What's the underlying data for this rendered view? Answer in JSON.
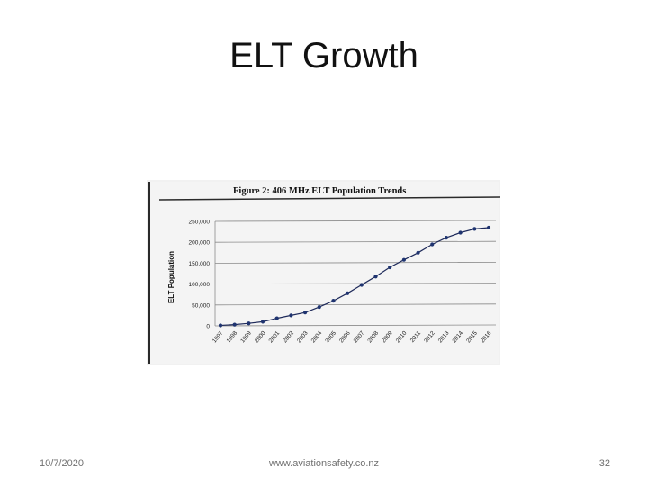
{
  "slide": {
    "title": "ELT Growth",
    "footer_date": "10/7/2020",
    "footer_url": "www.aviationsafety.co.nz",
    "page_number": "32"
  },
  "colors": {
    "line": "#1e2a5a",
    "marker": "#1f3470",
    "grid": "#8a8a8a",
    "frame": "#2a2a2a"
  },
  "chart_data": {
    "type": "line",
    "title": "Figure 2: 406 MHz ELT Population Trends",
    "xlabel": "",
    "ylabel": "ELT Population",
    "ylim": [
      0,
      250000
    ],
    "yticks": [
      0,
      50000,
      100000,
      150000,
      200000,
      250000
    ],
    "ytick_labels": [
      "0",
      "50,000",
      "100,000",
      "150,000",
      "200,000",
      "250,000"
    ],
    "grid": true,
    "legend": "none",
    "series": [
      {
        "x": [
          "1997",
          "1998",
          "1999",
          "2000",
          "2001",
          "2002",
          "2003",
          "2004",
          "2005",
          "2006",
          "2007",
          "2008",
          "2009",
          "2010",
          "2011",
          "2012",
          "2013",
          "2014",
          "2015",
          "2016"
        ],
        "values": [
          1000,
          3000,
          6000,
          10000,
          18000,
          25000,
          32000,
          45000,
          60000,
          78000,
          98000,
          118000,
          140000,
          158000,
          175000,
          195000,
          211000,
          223000,
          232000,
          235000
        ]
      }
    ]
  }
}
